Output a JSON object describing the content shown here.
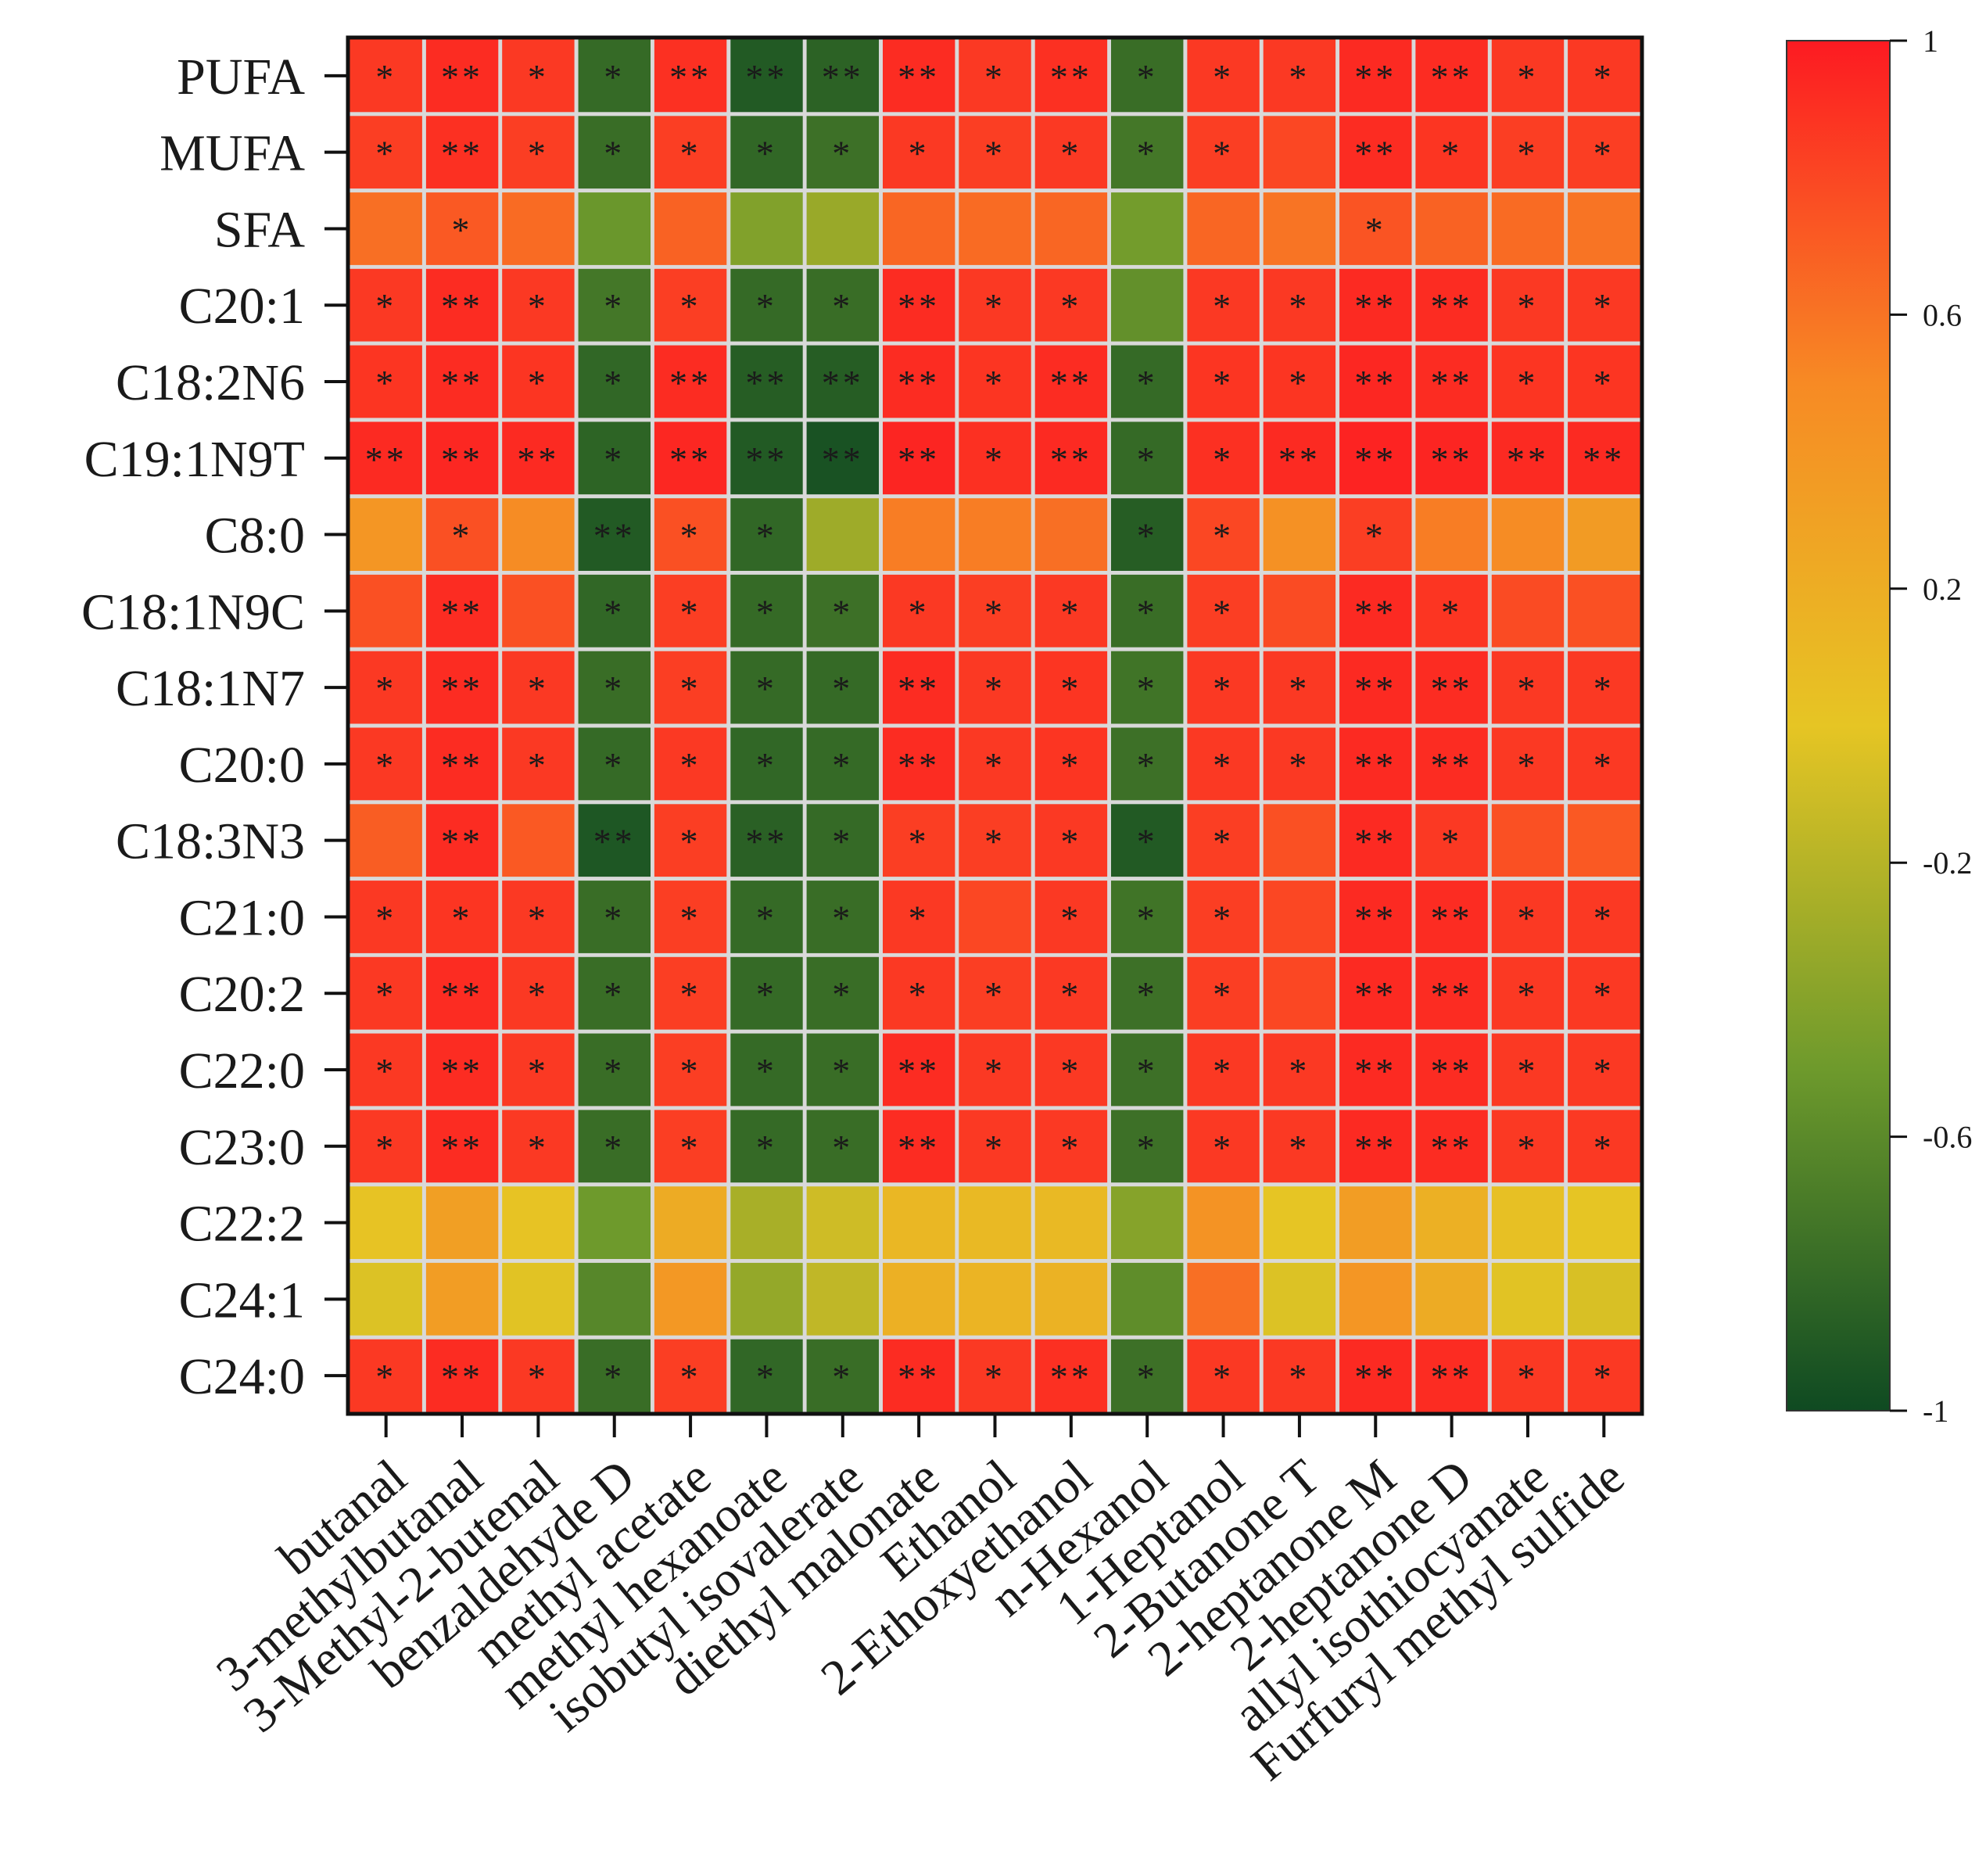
{
  "chart_data": {
    "type": "heatmap",
    "title": "",
    "xlabel": "",
    "ylabel": "",
    "rows": [
      "PUFA",
      "MUFA",
      "SFA",
      "C20:1",
      "C18:2N6",
      "C19:1N9T",
      "C8:0",
      "C18:1N9C",
      "C18:1N7",
      "C20:0",
      "C18:3N3",
      "C21:0",
      "C20:2",
      "C22:0",
      "C23:0",
      "C22:2",
      "C24:1",
      "C24:0"
    ],
    "columns": [
      "butanal",
      "3-methylbutanal",
      "3-Methyl-2-butenal",
      "benzaldehyde D",
      "methyl acetate",
      "methyl hexanoate",
      "isobutyl isovalerate",
      "diethyl malonate",
      "Ethanol",
      "2-Ethoxyethanol",
      "n-Hexanol",
      "1-Heptanol",
      "2-Butanone T",
      "2-heptanone M",
      "2-heptanone D",
      "allyl isothiocyanate",
      "Furfuryl methyl sulfide"
    ],
    "values": [
      [
        0.86,
        0.92,
        0.86,
        -0.8,
        0.9,
        -0.9,
        -0.85,
        0.92,
        0.86,
        0.9,
        -0.78,
        0.86,
        0.86,
        0.93,
        0.92,
        0.86,
        0.86
      ],
      [
        0.84,
        0.9,
        0.84,
        -0.78,
        0.84,
        -0.82,
        -0.76,
        0.86,
        0.84,
        0.86,
        -0.72,
        0.84,
        0.8,
        0.92,
        0.88,
        0.84,
        0.84
      ],
      [
        0.62,
        0.72,
        0.64,
        -0.52,
        0.68,
        -0.42,
        -0.32,
        0.66,
        0.64,
        0.66,
        -0.48,
        0.66,
        0.6,
        0.74,
        0.68,
        0.64,
        0.6
      ],
      [
        0.86,
        0.92,
        0.86,
        -0.72,
        0.84,
        -0.8,
        -0.78,
        0.92,
        0.86,
        0.86,
        -0.56,
        0.86,
        0.86,
        0.93,
        0.92,
        0.86,
        0.86
      ],
      [
        0.88,
        0.92,
        0.88,
        -0.82,
        0.92,
        -0.88,
        -0.88,
        0.92,
        0.88,
        0.92,
        -0.8,
        0.88,
        0.88,
        0.94,
        0.92,
        0.88,
        0.88
      ],
      [
        0.93,
        0.94,
        0.93,
        -0.84,
        0.94,
        -0.9,
        -0.95,
        0.95,
        0.9,
        0.93,
        -0.8,
        0.9,
        0.93,
        0.96,
        0.95,
        0.93,
        0.93
      ],
      [
        0.4,
        0.76,
        0.48,
        -0.9,
        0.76,
        -0.82,
        -0.3,
        0.56,
        0.56,
        0.62,
        -0.88,
        0.8,
        0.44,
        0.84,
        0.56,
        0.48,
        0.36
      ],
      [
        0.76,
        0.92,
        0.76,
        -0.82,
        0.84,
        -0.8,
        -0.76,
        0.86,
        0.84,
        0.86,
        -0.78,
        0.84,
        0.78,
        0.93,
        0.88,
        0.78,
        0.76
      ],
      [
        0.86,
        0.92,
        0.86,
        -0.78,
        0.84,
        -0.8,
        -0.8,
        0.92,
        0.86,
        0.88,
        -0.74,
        0.86,
        0.86,
        0.93,
        0.92,
        0.86,
        0.86
      ],
      [
        0.86,
        0.92,
        0.86,
        -0.8,
        0.86,
        -0.82,
        -0.8,
        0.92,
        0.86,
        0.88,
        -0.76,
        0.86,
        0.86,
        0.93,
        0.92,
        0.86,
        0.86
      ],
      [
        0.7,
        0.92,
        0.72,
        -0.92,
        0.84,
        -0.86,
        -0.8,
        0.84,
        0.84,
        0.86,
        -0.9,
        0.84,
        0.76,
        0.93,
        0.86,
        0.76,
        0.72
      ],
      [
        0.86,
        0.88,
        0.86,
        -0.78,
        0.84,
        -0.8,
        -0.78,
        0.86,
        0.8,
        0.86,
        -0.74,
        0.84,
        0.8,
        0.93,
        0.92,
        0.86,
        0.86
      ],
      [
        0.86,
        0.92,
        0.86,
        -0.78,
        0.84,
        -0.8,
        -0.78,
        0.86,
        0.84,
        0.86,
        -0.76,
        0.84,
        0.8,
        0.93,
        0.92,
        0.86,
        0.86
      ],
      [
        0.86,
        0.92,
        0.86,
        -0.78,
        0.84,
        -0.8,
        -0.78,
        0.92,
        0.86,
        0.86,
        -0.76,
        0.86,
        0.86,
        0.93,
        0.92,
        0.86,
        0.86
      ],
      [
        0.86,
        0.92,
        0.86,
        -0.78,
        0.84,
        -0.8,
        -0.78,
        0.92,
        0.86,
        0.86,
        -0.76,
        0.86,
        0.86,
        0.93,
        0.92,
        0.86,
        0.86
      ],
      [
        0.02,
        0.32,
        0.02,
        -0.5,
        0.22,
        -0.26,
        -0.1,
        0.12,
        0.1,
        0.1,
        -0.4,
        0.42,
        0.0,
        0.34,
        0.18,
        0.04,
        0.0
      ],
      [
        -0.04,
        0.34,
        -0.02,
        -0.62,
        0.38,
        -0.34,
        -0.16,
        0.18,
        0.14,
        0.16,
        -0.58,
        0.62,
        -0.04,
        0.4,
        0.22,
        -0.02,
        -0.06
      ],
      [
        0.86,
        0.92,
        0.86,
        -0.78,
        0.84,
        -0.82,
        -0.78,
        0.92,
        0.86,
        0.9,
        -0.76,
        0.86,
        0.86,
        0.93,
        0.92,
        0.86,
        0.86
      ]
    ],
    "significance": [
      [
        "*",
        "**",
        "*",
        "*",
        "**",
        "**",
        "**",
        "**",
        "*",
        "**",
        "*",
        "*",
        "*",
        "**",
        "**",
        "*",
        "*"
      ],
      [
        "*",
        "**",
        "*",
        "*",
        "*",
        "*",
        "*",
        "*",
        "*",
        "*",
        "*",
        "*",
        "",
        "**",
        "*",
        "*",
        "*"
      ],
      [
        "",
        "*",
        "",
        "",
        "",
        "",
        "",
        "",
        "",
        "",
        "",
        "",
        "",
        "*",
        "",
        "",
        ""
      ],
      [
        "*",
        "**",
        "*",
        "*",
        "*",
        "*",
        "*",
        "**",
        "*",
        "*",
        "",
        "*",
        "*",
        "**",
        "**",
        "*",
        "*"
      ],
      [
        "*",
        "**",
        "*",
        "*",
        "**",
        "**",
        "**",
        "**",
        "*",
        "**",
        "*",
        "*",
        "*",
        "**",
        "**",
        "*",
        "*"
      ],
      [
        "**",
        "**",
        "**",
        "*",
        "**",
        "**",
        "**",
        "**",
        "*",
        "**",
        "*",
        "*",
        "**",
        "**",
        "**",
        "**",
        "**"
      ],
      [
        "",
        "*",
        "",
        "**",
        "*",
        "*",
        "",
        "",
        "",
        "",
        "*",
        "*",
        "",
        "*",
        "",
        "",
        ""
      ],
      [
        "",
        "**",
        "",
        "*",
        "*",
        "*",
        "*",
        "*",
        "*",
        "*",
        "*",
        "*",
        "",
        "**",
        "*",
        "",
        ""
      ],
      [
        "*",
        "**",
        "*",
        "*",
        "*",
        "*",
        "*",
        "**",
        "*",
        "*",
        "*",
        "*",
        "*",
        "**",
        "**",
        "*",
        "*"
      ],
      [
        "*",
        "**",
        "*",
        "*",
        "*",
        "*",
        "*",
        "**",
        "*",
        "*",
        "*",
        "*",
        "*",
        "**",
        "**",
        "*",
        "*"
      ],
      [
        "",
        "**",
        "",
        "**",
        "*",
        "**",
        "*",
        "*",
        "*",
        "*",
        "*",
        "*",
        "",
        "**",
        "*",
        "",
        ""
      ],
      [
        "*",
        "*",
        "*",
        "*",
        "*",
        "*",
        "*",
        "*",
        "",
        "*",
        "*",
        "*",
        "",
        "**",
        "**",
        "*",
        "*"
      ],
      [
        "*",
        "**",
        "*",
        "*",
        "*",
        "*",
        "*",
        "*",
        "*",
        "*",
        "*",
        "*",
        "",
        "**",
        "**",
        "*",
        "*"
      ],
      [
        "*",
        "**",
        "*",
        "*",
        "*",
        "*",
        "*",
        "**",
        "*",
        "*",
        "*",
        "*",
        "*",
        "**",
        "**",
        "*",
        "*"
      ],
      [
        "*",
        "**",
        "*",
        "*",
        "*",
        "*",
        "*",
        "**",
        "*",
        "*",
        "*",
        "*",
        "*",
        "**",
        "**",
        "*",
        "*"
      ],
      [
        "",
        "",
        "",
        "",
        "",
        "",
        "",
        "",
        "",
        "",
        "",
        "",
        "",
        "",
        "",
        "",
        ""
      ],
      [
        "",
        "",
        "",
        "",
        "",
        "",
        "",
        "",
        "",
        "",
        "",
        "",
        "",
        "",
        "",
        "",
        ""
      ],
      [
        "*",
        "**",
        "*",
        "*",
        "*",
        "*",
        "*",
        "**",
        "*",
        "**",
        "*",
        "*",
        "*",
        "**",
        "**",
        "*",
        "*"
      ]
    ],
    "colorbar": {
      "range": [
        -1,
        1
      ],
      "ticks": [
        1,
        0.6,
        0.2,
        -0.2,
        -0.6,
        -1
      ],
      "tick_labels": [
        "1",
        "0.6",
        "0.2",
        "-0.2",
        "-0.6",
        "-1"
      ],
      "colormap": [
        "#0f4a22",
        "#6e9a2c",
        "#e6c524",
        "#f78a24",
        "#fd1a22"
      ]
    }
  }
}
